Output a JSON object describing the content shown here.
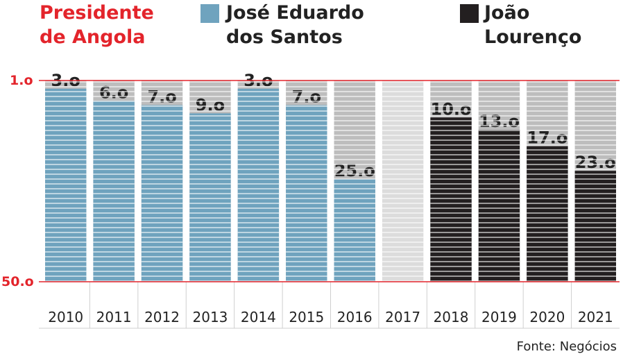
{
  "header": {
    "title_line1": "Presidente",
    "title_line2": "de Angola"
  },
  "legend": [
    {
      "line1": "José Eduardo",
      "line2": "dos Santos",
      "color": "#6fa3be"
    },
    {
      "line1": "João",
      "line2": "Lourenço",
      "color": "#231f20"
    }
  ],
  "source": "Fonte: Negócios",
  "colors": {
    "accent": "#e3242b",
    "dos_santos": "#6fa3be",
    "lourenco": "#231f20",
    "background_bar": "#bdbdbd",
    "no_data_bar": "#dcdcdc"
  },
  "chart_data": {
    "type": "bar",
    "title": "",
    "xlabel": "",
    "ylabel": "",
    "y_axis_reversed": true,
    "ylim": [
      1,
      50
    ],
    "ytick_labels": [
      "1.o",
      "50.o"
    ],
    "categories": [
      "2010",
      "2011",
      "2012",
      "2013",
      "2014",
      "2015",
      "2016",
      "2017",
      "2018",
      "2019",
      "2020",
      "2021"
    ],
    "values": [
      3,
      6,
      7,
      9,
      3,
      7,
      25,
      null,
      10,
      13,
      17,
      23
    ],
    "value_labels": [
      "3.o",
      "6.o",
      "7.o",
      "9.o",
      "3.o",
      "7.o",
      "25.o",
      "",
      "10.o",
      "13.o",
      "17.o",
      "23.o"
    ],
    "president": [
      "José Eduardo dos Santos",
      "José Eduardo dos Santos",
      "José Eduardo dos Santos",
      "José Eduardo dos Santos",
      "José Eduardo dos Santos",
      "José Eduardo dos Santos",
      "José Eduardo dos Santos",
      "",
      "João Lourenço",
      "João Lourenço",
      "João Lourenço",
      "João Lourenço"
    ],
    "series": [
      {
        "name": "José Eduardo dos Santos",
        "color": "#6fa3be"
      },
      {
        "name": "João Lourenço",
        "color": "#231f20"
      }
    ],
    "grid": false,
    "legend_position": "top"
  }
}
